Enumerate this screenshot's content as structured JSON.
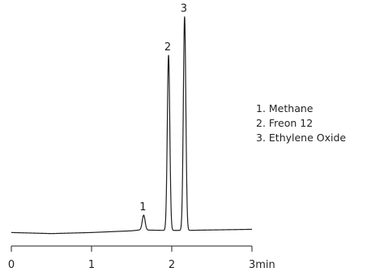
{
  "chart_data": {
    "type": "line",
    "title": "",
    "xlabel": "",
    "ylabel": "",
    "xlim": [
      0,
      3
    ],
    "x_ticks": [
      0,
      1,
      2,
      3
    ],
    "x_tick_labels": [
      "0",
      "1",
      "2",
      "3min"
    ],
    "y_axis_shown": false,
    "grid": false,
    "legend_placement": "right",
    "line_color": "#231f20",
    "baseline_points": [
      [
        0,
        0.01
      ],
      [
        0.5,
        0.005
      ],
      [
        1.0,
        0.01
      ],
      [
        1.5,
        0.018
      ],
      [
        1.6,
        0.022
      ],
      [
        1.9,
        0.02
      ],
      [
        2.2,
        0.02
      ],
      [
        2.5,
        0.022
      ],
      [
        3.0,
        0.025
      ]
    ],
    "peaks": [
      {
        "label": "1",
        "x": 1.65,
        "height": 0.07
      },
      {
        "label": "2",
        "x": 1.96,
        "height": 0.82
      },
      {
        "label": "3",
        "x": 2.16,
        "height": 1.0
      }
    ],
    "legend": [
      "1. Methane",
      "2. Freon 12",
      "3. Ethylene Oxide"
    ]
  }
}
